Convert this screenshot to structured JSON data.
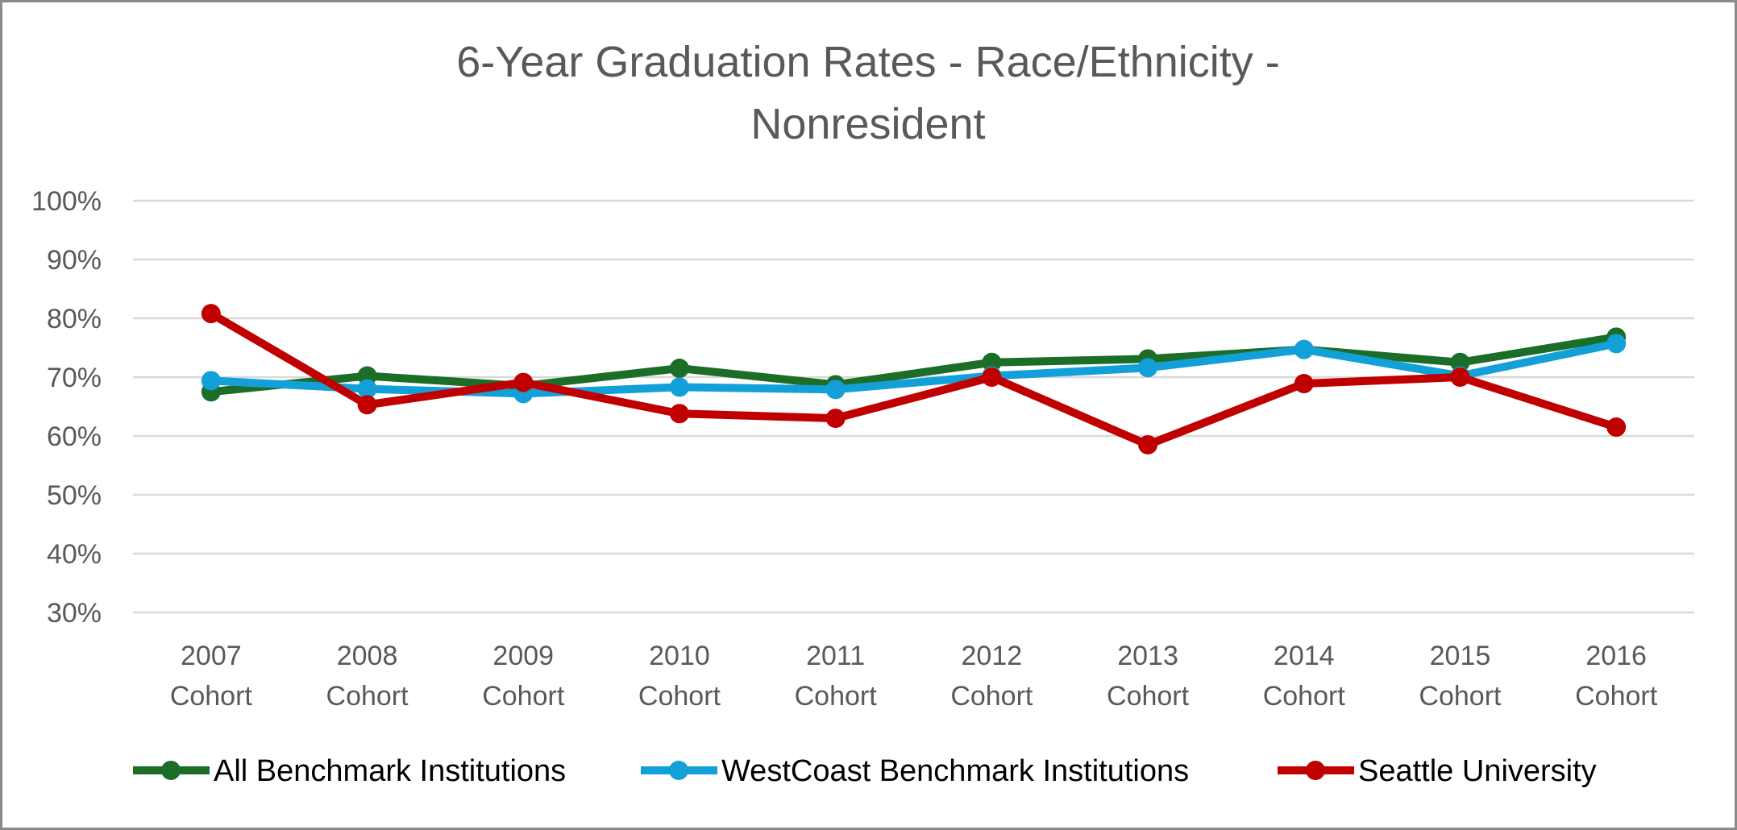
{
  "chart_data": {
    "type": "line",
    "title": "6-Year Graduation Rates - Race/Ethnicity - Nonresident",
    "title_lines": [
      "6-Year Graduation Rates - Race/Ethnicity -",
      "Nonresident"
    ],
    "xlabel": "",
    "ylabel": "",
    "categories": [
      [
        "2007",
        "Cohort"
      ],
      [
        "2008",
        "Cohort"
      ],
      [
        "2009",
        "Cohort"
      ],
      [
        "2010",
        "Cohort"
      ],
      [
        "2011",
        "Cohort"
      ],
      [
        "2012",
        "Cohort"
      ],
      [
        "2013",
        "Cohort"
      ],
      [
        "2014",
        "Cohort"
      ],
      [
        "2015",
        "Cohort"
      ],
      [
        "2016",
        "Cohort"
      ]
    ],
    "ylim": [
      30,
      100
    ],
    "yticks": [
      30,
      40,
      50,
      60,
      70,
      80,
      90,
      100
    ],
    "ytick_labels": [
      "30%",
      "40%",
      "50%",
      "60%",
      "70%",
      "80%",
      "90%",
      "100%"
    ],
    "grid": true,
    "legend_position": "bottom",
    "series": [
      {
        "name": "All Benchmark Institutions",
        "color": "#1b6d28",
        "values": [
          67.5,
          70.2,
          68.5,
          71.5,
          68.7,
          72.5,
          73.1,
          74.7,
          72.5,
          76.8
        ]
      },
      {
        "name": "WestCoast Benchmark Institutions",
        "color": "#13a0d8",
        "values": [
          69.4,
          68.0,
          67.2,
          68.3,
          67.9,
          70.2,
          71.6,
          74.7,
          70.2,
          75.7
        ]
      },
      {
        "name": "Seattle University",
        "color": "#c00000",
        "values": [
          80.8,
          65.3,
          69.1,
          63.8,
          63.0,
          70.0,
          58.5,
          68.9,
          70.0,
          61.5
        ]
      }
    ]
  }
}
